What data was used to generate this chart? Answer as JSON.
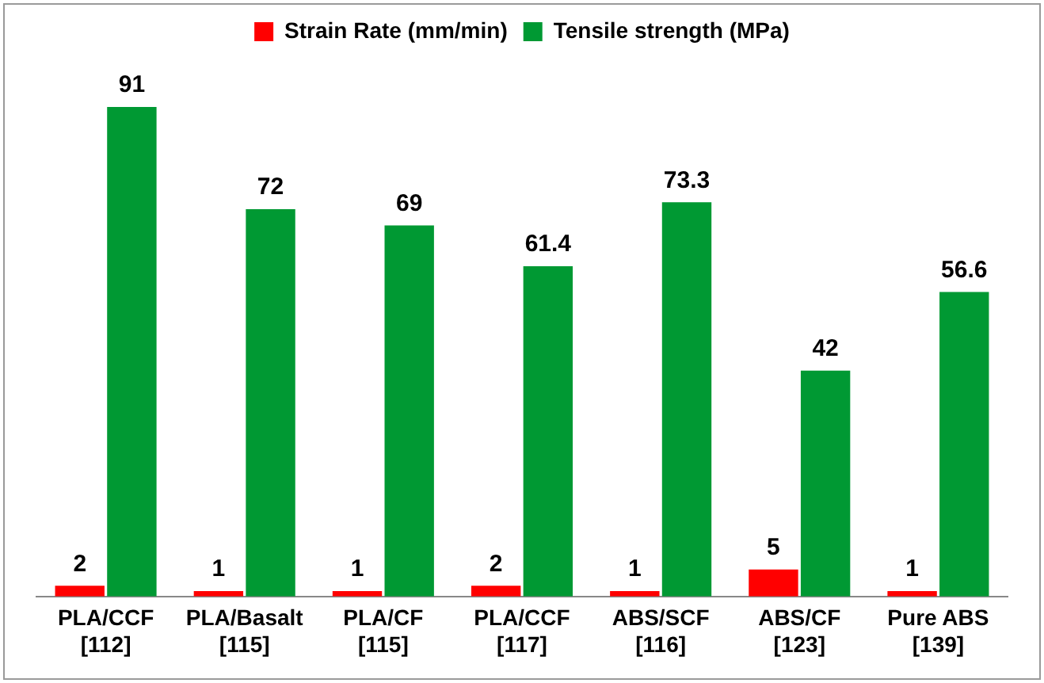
{
  "chart_data": {
    "type": "bar",
    "categories": [
      "PLA/CCF\n[112]",
      "PLA/Basalt\n[115]",
      "PLA/CF\n[115]",
      "PLA/CCF\n[117]",
      "ABS/SCF\n[116]",
      "ABS/CF\n[123]",
      "Pure ABS\n[139]"
    ],
    "series": [
      {
        "name": "Strain Rate (mm/min)",
        "color": "#ff0000",
        "values": [
          2,
          1,
          1,
          2,
          1,
          5,
          1
        ]
      },
      {
        "name": "Tensile strength (MPa)",
        "color": "#009933",
        "values": [
          91,
          72,
          69,
          61.4,
          73.3,
          42,
          56.6
        ]
      }
    ],
    "data_labels": true,
    "legend": "top",
    "grid": false,
    "tick_labels": "x"
  }
}
